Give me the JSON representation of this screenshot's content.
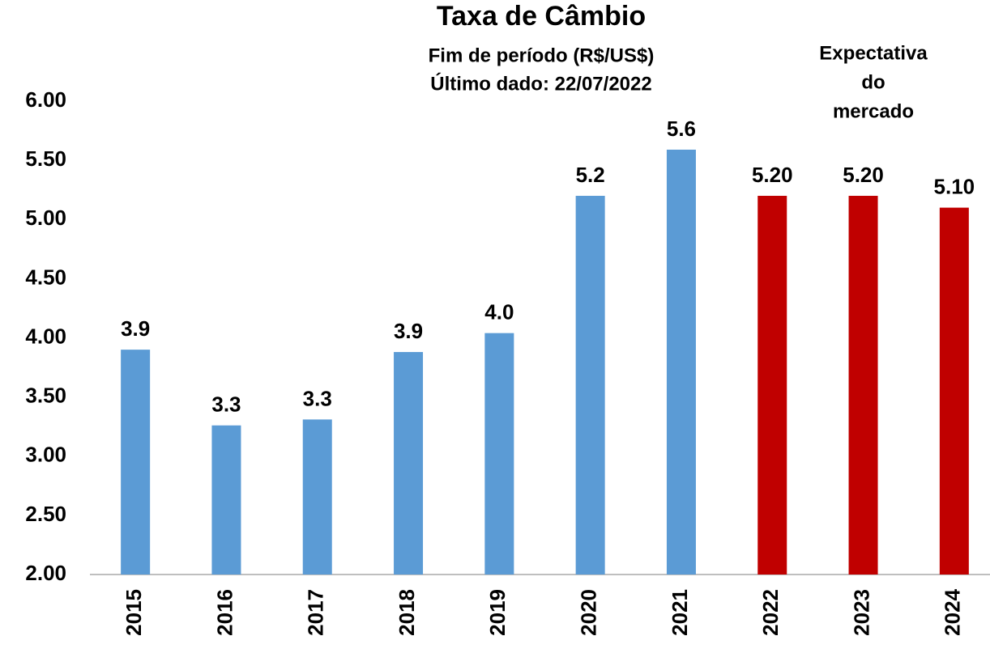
{
  "chart_data": {
    "type": "bar",
    "title": "Taxa de Câmbio",
    "subtitle": [
      "Fim de período (R$/US$)",
      "Último dado: 22/07/2022"
    ],
    "annotation": [
      "Expectativa",
      "do",
      "mercado"
    ],
    "annotation_color": "#c00000",
    "categories": [
      "2015",
      "2016",
      "2017",
      "2018",
      "2019",
      "2020",
      "2021",
      "2022",
      "2023",
      "2024"
    ],
    "values": [
      3.9,
      3.26,
      3.31,
      3.88,
      4.04,
      5.2,
      5.59,
      5.2,
      5.2,
      5.1
    ],
    "value_labels": [
      "3.9",
      "3.3",
      "3.3",
      "3.9",
      "4.0",
      "5.2",
      "5.6",
      "5.20",
      "5.20",
      "5.10"
    ],
    "colors": [
      "#5b9bd5",
      "#5b9bd5",
      "#5b9bd5",
      "#5b9bd5",
      "#5b9bd5",
      "#5b9bd5",
      "#5b9bd5",
      "#c00000",
      "#c00000",
      "#c00000"
    ],
    "label_colors": [
      "#000000",
      "#000000",
      "#000000",
      "#000000",
      "#000000",
      "#000000",
      "#000000",
      "#c00000",
      "#c00000",
      "#c00000"
    ],
    "ylim": [
      2,
      6
    ],
    "yticks": [
      {
        "value": 2,
        "label": "2.00"
      },
      {
        "value": 2.5,
        "label": "2.50"
      },
      {
        "value": 3,
        "label": "3.00"
      },
      {
        "value": 3.5,
        "label": "3.50"
      },
      {
        "value": 4,
        "label": "4.00"
      },
      {
        "value": 4.5,
        "label": "4.50"
      },
      {
        "value": 5,
        "label": "5.00"
      },
      {
        "value": 5.5,
        "label": "5.50"
      },
      {
        "value": 6,
        "label": "6.00"
      }
    ],
    "grid": false
  }
}
